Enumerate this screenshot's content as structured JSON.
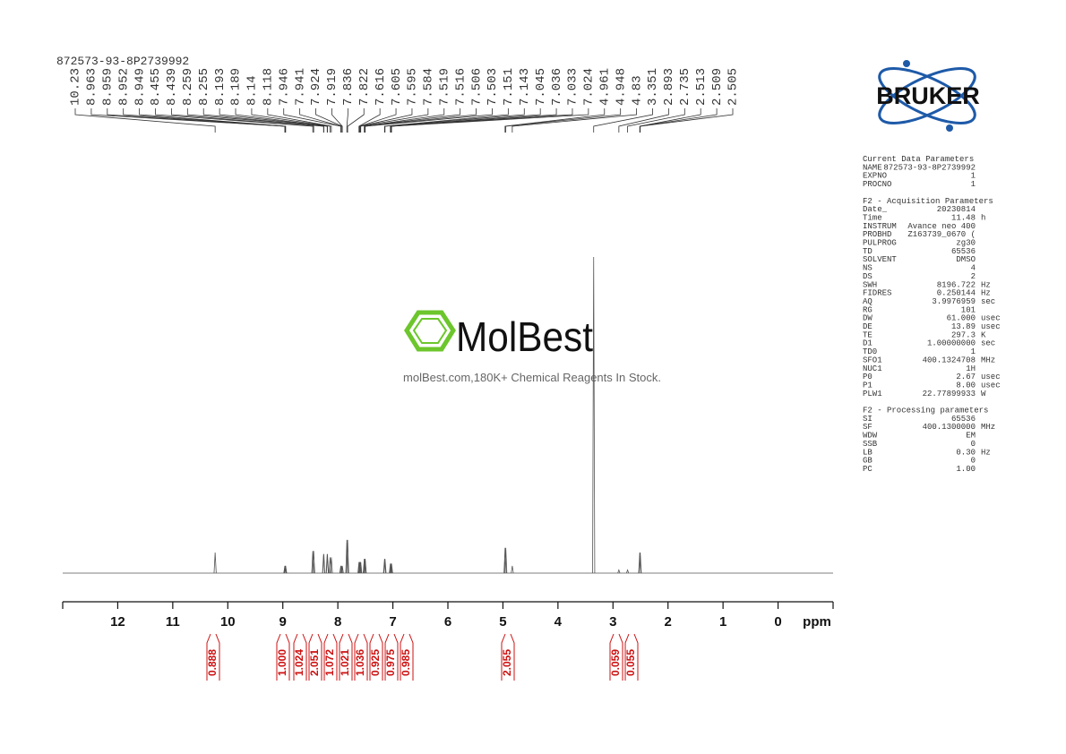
{
  "sample_name": "872573-93-8P2739992",
  "watermark": {
    "brand": "MolBest",
    "tagline": "molBest.com,180K+ Chemical Reagents In Stock."
  },
  "logo": "BRUKER",
  "chart_data": {
    "type": "nmr",
    "x_label": "ppm",
    "xlim": [
      13,
      -1
    ],
    "xticks": [
      12,
      11,
      10,
      9,
      8,
      7,
      6,
      5,
      4,
      3,
      2,
      1,
      0
    ],
    "peak_labels": [
      10.23,
      8.963,
      8.959,
      8.952,
      8.949,
      8.455,
      8.439,
      8.259,
      8.255,
      8.193,
      8.189,
      8.14,
      8.118,
      7.946,
      7.941,
      7.924,
      7.919,
      7.836,
      7.822,
      7.616,
      7.605,
      7.595,
      7.584,
      7.519,
      7.516,
      7.506,
      7.503,
      7.151,
      7.143,
      7.045,
      7.036,
      7.033,
      7.024,
      4.961,
      4.948,
      4.83,
      3.351,
      2.893,
      2.735,
      2.513,
      2.509,
      2.505
    ],
    "intensities": [
      6.5,
      2.3,
      2.3,
      2.3,
      2.3,
      7,
      7,
      6,
      6,
      6,
      6,
      5,
      5,
      2.3,
      2.3,
      2.3,
      2.3,
      10.5,
      10.5,
      3.5,
      3.5,
      3.5,
      3.5,
      4.5,
      4.5,
      4.5,
      4.5,
      4.5,
      4.5,
      3,
      3,
      3,
      3,
      8,
      8,
      2.3,
      100,
      1,
      1,
      6.5,
      6.5,
      6.5
    ],
    "integrals": [
      0.888,
      1.0,
      1.024,
      2.051,
      1.072,
      1.021,
      1.036,
      0.925,
      0.975,
      0.985,
      2.055,
      0.059,
      0.055
    ],
    "integral_labels": [
      "0.888",
      "1.000",
      "1.024",
      "2.051",
      "1.072",
      "1.021",
      "1.036",
      "0.925",
      "0.975",
      "0.985",
      "2.055",
      "0.059",
      "0.055"
    ],
    "color": "#555555",
    "integral_color": "#cc1111"
  },
  "parameters": [
    {
      "heading": "Current Data Parameters",
      "rows": [
        [
          "NAME",
          "872573-93-8P2739992",
          ""
        ],
        [
          "EXPNO",
          "1",
          ""
        ],
        [
          "PROCNO",
          "1",
          ""
        ]
      ]
    },
    {
      "heading": "F2 - Acquisition Parameters",
      "rows": [
        [
          "Date_",
          "20230814",
          ""
        ],
        [
          "Time",
          "11.48",
          "h"
        ],
        [
          "INSTRUM",
          "Avance neo 400",
          ""
        ],
        [
          "PROBHD",
          "Z163739_0670 (",
          ""
        ],
        [
          "PULPROG",
          "zg30",
          ""
        ],
        [
          "TD",
          "65536",
          ""
        ],
        [
          "SOLVENT",
          "DMSO",
          ""
        ],
        [
          "NS",
          "4",
          ""
        ],
        [
          "DS",
          "2",
          ""
        ],
        [
          "SWH",
          "8196.722",
          "Hz"
        ],
        [
          "FIDRES",
          "0.250144",
          "Hz"
        ],
        [
          "AQ",
          "3.9976959",
          "sec"
        ],
        [
          "RG",
          "101",
          ""
        ],
        [
          "DW",
          "61.000",
          "usec"
        ],
        [
          "DE",
          "13.89",
          "usec"
        ],
        [
          "TE",
          "297.3",
          "K"
        ],
        [
          "D1",
          "1.00000000",
          "sec"
        ],
        [
          "TD0",
          "1",
          ""
        ],
        [
          "SFO1",
          "400.1324708",
          "MHz"
        ],
        [
          "NUC1",
          "1H",
          ""
        ],
        [
          "P0",
          "2.67",
          "usec"
        ],
        [
          "P1",
          "8.00",
          "usec"
        ],
        [
          "PLW1",
          "22.77899933",
          "W"
        ]
      ]
    },
    {
      "heading": "F2 - Processing parameters",
      "rows": [
        [
          "SI",
          "65536",
          ""
        ],
        [
          "SF",
          "400.1300000",
          "MHz"
        ],
        [
          "WDW",
          "EM",
          ""
        ],
        [
          "SSB",
          "0",
          ""
        ],
        [
          "LB",
          "0.30",
          "Hz"
        ],
        [
          "GB",
          "0",
          ""
        ],
        [
          "PC",
          "1.00",
          ""
        ]
      ]
    }
  ]
}
